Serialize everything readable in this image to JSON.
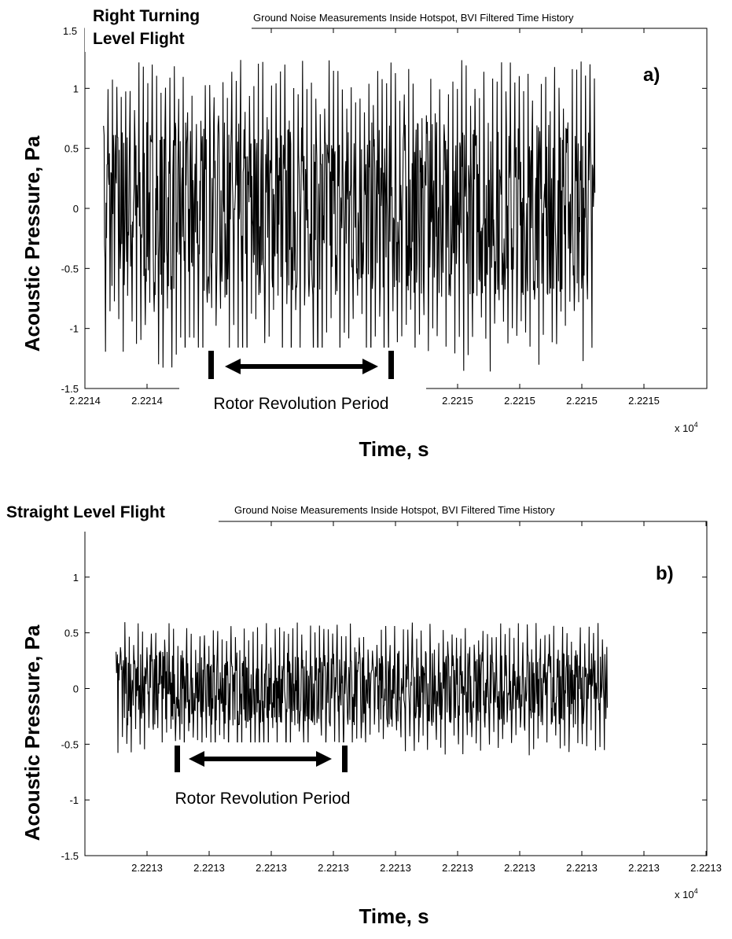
{
  "chart_data": [
    {
      "type": "line",
      "panel_id": "a)",
      "title": "Ground Noise Measurements Inside Hotspot, BVI Filtered Time History",
      "condition": "Right Turning Level Flight",
      "condition_lines": [
        "Right Turning",
        "Level Flight"
      ],
      "xlabel": "Time, s",
      "ylabel": "Acoustic Pressure, Pa",
      "x_multiplier": "x 10^4",
      "x_multiplier_base": "x 10",
      "x_multiplier_exp": "4",
      "x_tick_labels": [
        "2.2214",
        "2.2214",
        "",
        "",
        "",
        "2.2215",
        "2.2215",
        "2.2215",
        "2.2215",
        "2.2215"
      ],
      "y_ticks": [
        -1.5,
        -1,
        -0.5,
        0,
        0.5,
        1
      ],
      "y_tick_labels": [
        "-1.5",
        "-1",
        "-0.5",
        "0",
        "0.5",
        "1"
      ],
      "ylim": [
        -1.5,
        1.5
      ],
      "x_range_fraction": [
        0.03,
        0.82
      ],
      "envelope": {
        "max": 1.25,
        "min": -1.38
      },
      "annotation": "Rotor Revolution Period",
      "grid": false,
      "series": [
        {
          "values": []
        }
      ]
    },
    {
      "type": "line",
      "panel_id": "b)",
      "title": "Ground Noise Measurements Inside Hotspot, BVI Filtered Time History",
      "condition": "Straight Level Flight",
      "condition_lines": [
        "Straight Level Flight"
      ],
      "xlabel": "Time, s",
      "ylabel": "Acoustic Pressure, Pa",
      "x_multiplier": "x 10^4",
      "x_multiplier_base": "x 10",
      "x_multiplier_exp": "4",
      "x_tick_labels": [
        "",
        "2.2213",
        "2.2213",
        "2.2213",
        "2.2213",
        "2.2213",
        "2.2213",
        "2.2213",
        "2.2213",
        "2.2213",
        "2.2213"
      ],
      "y_ticks": [
        -1.5,
        -1,
        -0.5,
        0,
        0.5,
        1
      ],
      "y_tick_labels": [
        "-1.5",
        "-1",
        "-0.5",
        "0",
        "0.5",
        "1"
      ],
      "ylim": [
        -1.5,
        1.5
      ],
      "x_range_fraction": [
        0.05,
        0.84
      ],
      "envelope": {
        "max": 0.6,
        "min": -0.6
      },
      "annotation": "Rotor Revolution Period",
      "grid": false,
      "series": [
        {
          "values": []
        }
      ]
    }
  ]
}
